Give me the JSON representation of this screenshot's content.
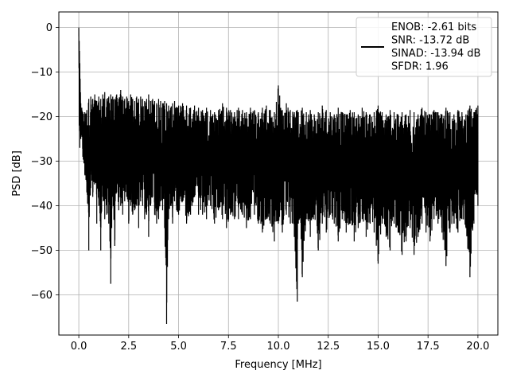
{
  "chart_data": {
    "type": "line",
    "title": "",
    "xlabel": "Frequency [MHz]",
    "ylabel": "PSD [dB]",
    "xlim": [
      -1.0,
      21.0
    ],
    "ylim": [
      -69.0,
      3.5
    ],
    "xticks": [
      0.0,
      2.5,
      5.0,
      7.5,
      10.0,
      12.5,
      15.0,
      17.5,
      20.0
    ],
    "xtick_labels": [
      "0.0",
      "2.5",
      "5.0",
      "7.5",
      "10.0",
      "12.5",
      "15.0",
      "17.5",
      "20.0"
    ],
    "yticks": [
      0,
      -10,
      -20,
      -30,
      -40,
      -50,
      -60
    ],
    "ytick_labels": [
      "0",
      "−10",
      "−20",
      "−30",
      "−40",
      "−50",
      "−60"
    ],
    "grid": true,
    "legend_position": "top-right",
    "series": [
      {
        "name": "ENOB: -2.61 bits\nSNR: -13.72 dB\nSINAD: -13.94 dB\nSFDR: 1.96",
        "color": "#000000",
        "x": [
          0.0,
          0.02,
          0.05,
          0.1,
          0.15,
          0.2,
          0.3,
          0.4,
          0.5,
          0.6,
          0.7,
          0.8,
          0.9,
          1.0,
          1.1,
          1.2,
          1.3,
          1.4,
          1.5,
          1.6,
          1.65,
          1.7,
          1.8,
          1.9,
          2.0,
          2.1,
          2.2,
          2.3,
          2.4,
          2.5,
          2.6,
          2.7,
          2.8,
          2.9,
          3.0,
          3.1,
          3.2,
          3.3,
          3.4,
          3.5,
          3.6,
          3.7,
          3.8,
          3.9,
          4.0,
          4.1,
          4.2,
          4.3,
          4.4,
          4.5,
          4.6,
          4.7,
          4.8,
          4.9,
          5.0,
          5.2,
          5.4,
          5.6,
          5.8,
          6.0,
          6.2,
          6.4,
          6.6,
          6.8,
          7.0,
          7.2,
          7.4,
          7.6,
          7.8,
          8.0,
          8.2,
          8.4,
          8.6,
          8.8,
          9.0,
          9.2,
          9.4,
          9.6,
          9.8,
          10.0,
          10.2,
          10.4,
          10.6,
          10.8,
          10.95,
          11.0,
          11.2,
          11.4,
          11.6,
          11.8,
          12.0,
          12.2,
          12.4,
          12.6,
          12.8,
          13.0,
          13.2,
          13.4,
          13.6,
          13.8,
          14.0,
          14.2,
          14.4,
          14.6,
          14.8,
          15.0,
          15.2,
          15.4,
          15.6,
          15.8,
          16.0,
          16.2,
          16.4,
          16.6,
          16.8,
          17.0,
          17.2,
          17.4,
          17.6,
          17.8,
          18.0,
          18.2,
          18.4,
          18.6,
          18.8,
          19.0,
          19.2,
          19.4,
          19.6,
          19.8,
          20.0
        ],
        "upper": [
          0.0,
          -3.0,
          -8.0,
          -17.0,
          -18.0,
          -19.0,
          -19.0,
          -18.5,
          -16.0,
          -15.5,
          -16.0,
          -15.0,
          -16.5,
          -15.5,
          -16.0,
          -15.0,
          -14.5,
          -16.0,
          -15.5,
          -15.0,
          -16.0,
          -15.5,
          -16.0,
          -15.0,
          -16.0,
          -14.0,
          -15.5,
          -16.0,
          -15.5,
          -16.5,
          -15.0,
          -16.0,
          -16.5,
          -15.5,
          -16.0,
          -15.5,
          -16.0,
          -16.5,
          -16.0,
          -15.0,
          -16.5,
          -16.0,
          -16.5,
          -17.0,
          -16.0,
          -16.5,
          -17.0,
          -16.5,
          -17.0,
          -17.5,
          -18.0,
          -17.0,
          -16.5,
          -18.0,
          -17.5,
          -17.0,
          -17.5,
          -18.0,
          -17.5,
          -18.0,
          -18.5,
          -18.0,
          -18.5,
          -19.0,
          -18.5,
          -17.0,
          -18.0,
          -18.5,
          -19.0,
          -18.0,
          -18.5,
          -19.0,
          -18.0,
          -18.5,
          -19.0,
          -18.0,
          -17.5,
          -18.5,
          -19.0,
          -13.0,
          -18.5,
          -17.0,
          -18.5,
          -19.0,
          -18.5,
          -19.0,
          -18.0,
          -19.0,
          -18.5,
          -19.5,
          -19.0,
          -17.5,
          -18.5,
          -19.0,
          -19.5,
          -18.0,
          -19.0,
          -19.5,
          -18.5,
          -19.0,
          -19.5,
          -18.0,
          -19.0,
          -19.5,
          -19.0,
          -17.5,
          -19.0,
          -19.5,
          -18.5,
          -19.0,
          -19.5,
          -19.0,
          -19.5,
          -18.5,
          -19.0,
          -19.5,
          -18.0,
          -19.0,
          -19.5,
          -18.5,
          -19.0,
          -19.5,
          -18.0,
          -19.0,
          -19.5,
          -18.5,
          -19.0,
          -19.5,
          -17.5,
          -19.0,
          -17.5
        ],
        "lower": [
          -2.0,
          -22.0,
          -27.0,
          -25.0,
          -24.0,
          -29.0,
          -33.0,
          -37.0,
          -50.0,
          -36.0,
          -38.0,
          -35.0,
          -44.0,
          -40.0,
          -50.0,
          -38.0,
          -43.0,
          -42.0,
          -44.0,
          -57.5,
          -45.0,
          -38.0,
          -49.0,
          -37.0,
          -41.0,
          -40.0,
          -42.0,
          -39.0,
          -38.0,
          -44.0,
          -40.0,
          -42.0,
          -41.0,
          -40.0,
          -45.0,
          -39.0,
          -40.0,
          -43.0,
          -42.0,
          -47.0,
          -40.0,
          -38.0,
          -42.0,
          -44.0,
          -43.0,
          -39.0,
          -41.0,
          -45.0,
          -66.5,
          -43.0,
          -40.0,
          -44.0,
          -39.0,
          -41.0,
          -42.0,
          -39.0,
          -44.0,
          -42.0,
          -38.0,
          -42.0,
          -42.0,
          -43.0,
          -40.0,
          -44.0,
          -41.0,
          -43.0,
          -45.0,
          -42.0,
          -43.0,
          -43.0,
          -42.0,
          -45.0,
          -43.0,
          -42.0,
          -44.0,
          -46.0,
          -43.0,
          -44.0,
          -48.0,
          -44.0,
          -46.0,
          -42.0,
          -44.0,
          -47.0,
          -61.5,
          -44.0,
          -56.0,
          -43.0,
          -47.0,
          -42.0,
          -50.0,
          -44.0,
          -46.0,
          -42.0,
          -44.0,
          -48.0,
          -43.0,
          -46.0,
          -44.0,
          -48.0,
          -45.0,
          -43.0,
          -47.0,
          -44.0,
          -46.0,
          -53.0,
          -44.0,
          -47.0,
          -50.0,
          -44.0,
          -46.0,
          -51.0,
          -48.0,
          -45.0,
          -51.0,
          -47.0,
          -44.0,
          -46.0,
          -48.0,
          -43.0,
          -44.0,
          -46.0,
          -53.5,
          -46.0,
          -44.0,
          -46.0,
          -43.0,
          -45.0,
          -56.0,
          -44.0,
          -40.0
        ]
      }
    ]
  }
}
